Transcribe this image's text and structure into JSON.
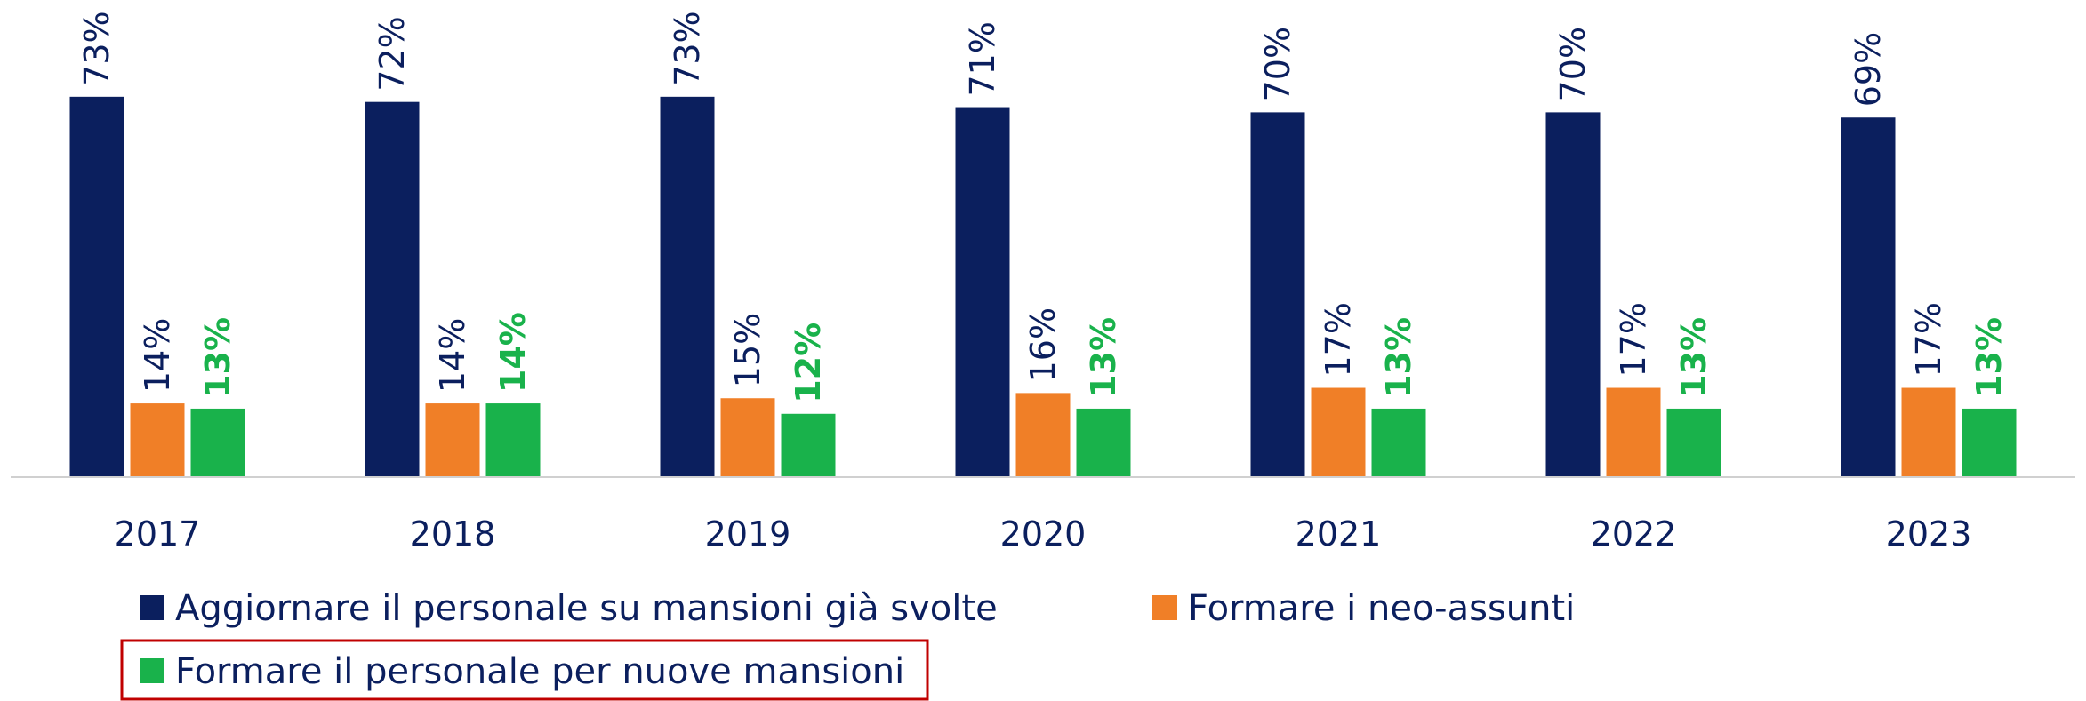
{
  "chart_data": {
    "type": "bar",
    "categories": [
      "2017",
      "2018",
      "2019",
      "2020",
      "2021",
      "2022",
      "2023"
    ],
    "series": [
      {
        "name": "Aggiornare il personale su mansioni già svolte",
        "color": "#0b1f5e",
        "values": [
          73,
          72,
          73,
          71,
          70,
          70,
          69
        ],
        "value_labels": [
          "73%",
          "72%",
          "73%",
          "71%",
          "70%",
          "70%",
          "69%"
        ]
      },
      {
        "name": "Formare i neo-assunti",
        "color": "#f07f27",
        "values": [
          14,
          14,
          15,
          16,
          17,
          17,
          17
        ],
        "value_labels": [
          "14%",
          "14%",
          "15%",
          "16%",
          "17%",
          "17%",
          "17%"
        ]
      },
      {
        "name": "Formare il personale per nuove mansioni",
        "color": "#19b24b",
        "values": [
          13,
          14,
          12,
          13,
          13,
          13,
          13
        ],
        "value_labels": [
          "13%",
          "14%",
          "12%",
          "13%",
          "13%",
          "13%",
          "13%"
        ]
      }
    ],
    "ylim": [
      0,
      91.6
    ]
  }
}
